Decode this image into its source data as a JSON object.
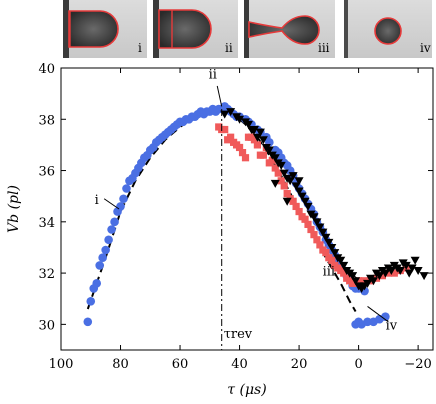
{
  "photos": [
    {
      "label": "i"
    },
    {
      "label": "ii"
    },
    {
      "label": "iii"
    },
    {
      "label": "iv"
    }
  ],
  "chart_data": {
    "type": "scatter",
    "xlabel": "τ (μs)",
    "ylabel": "Vb (pl)",
    "xlim": [
      100,
      -25
    ],
    "ylim": [
      29,
      40
    ],
    "x_ticks": [
      100,
      80,
      60,
      40,
      20,
      0,
      -20
    ],
    "x_tick_labels": [
      "100",
      "80",
      "60",
      "40",
      "20",
      "0",
      "−20"
    ],
    "y_ticks": [
      30,
      32,
      34,
      36,
      38,
      40
    ],
    "y_tick_labels": [
      "30",
      "32",
      "34",
      "36",
      "38",
      "40"
    ],
    "x_reversed": true,
    "grid": false,
    "vline": {
      "x": 46,
      "label": "τrev"
    },
    "fit_curve": {
      "style": "dashed",
      "points": [
        [
          91,
          30.6
        ],
        [
          85,
          32.6
        ],
        [
          80,
          34.4
        ],
        [
          75,
          35.6
        ],
        [
          70,
          36.5
        ],
        [
          65,
          37.2
        ],
        [
          60,
          37.7
        ],
        [
          55,
          38.1
        ],
        [
          50,
          38.3
        ],
        [
          46,
          38.35
        ],
        [
          42,
          38.2
        ],
        [
          38,
          37.8
        ],
        [
          34,
          37.3
        ],
        [
          30,
          36.6
        ],
        [
          26,
          35.8
        ],
        [
          22,
          34.9
        ],
        [
          18,
          34.0
        ],
        [
          14,
          33.2
        ],
        [
          10,
          32.4
        ],
        [
          6,
          31.6
        ],
        [
          3,
          30.9
        ],
        [
          1,
          30.5
        ]
      ]
    },
    "annotations": [
      {
        "text": "i",
        "x": 82,
        "y": 34.2
      },
      {
        "text": "ii",
        "x": 46,
        "y": 38.4
      },
      {
        "text": "iii",
        "x": 3,
        "y": 31.9
      },
      {
        "text": "iv",
        "x": 10,
        "y": 30.2
      }
    ],
    "colors": {
      "blue": "#4a6fe3",
      "red": "#f05a5a",
      "black": "#000000"
    },
    "series": [
      {
        "marker": "circle",
        "color": "#4a6fe3",
        "points": [
          [
            91,
            30.1
          ],
          [
            90,
            30.9
          ],
          [
            89,
            31.4
          ],
          [
            88,
            31.6
          ],
          [
            87,
            32.3
          ],
          [
            86,
            32.6
          ],
          [
            85,
            32.9
          ],
          [
            84,
            33.3
          ],
          [
            83,
            33.7
          ],
          [
            82,
            34.0
          ],
          [
            81,
            34.4
          ],
          [
            80,
            34.6
          ],
          [
            79,
            34.9
          ],
          [
            78,
            35.3
          ],
          [
            77,
            35.6
          ],
          [
            76,
            35.7
          ],
          [
            75,
            35.9
          ],
          [
            74,
            36.1
          ],
          [
            73,
            36.3
          ],
          [
            72,
            36.5
          ],
          [
            71,
            36.6
          ],
          [
            70,
            36.8
          ],
          [
            69,
            36.9
          ],
          [
            68,
            37.1
          ],
          [
            67,
            37.2
          ],
          [
            66,
            37.3
          ],
          [
            65,
            37.4
          ],
          [
            64,
            37.5
          ],
          [
            63,
            37.6
          ],
          [
            62,
            37.7
          ],
          [
            61,
            37.8
          ],
          [
            60,
            37.9
          ],
          [
            59,
            37.9
          ],
          [
            58,
            38.0
          ],
          [
            57,
            38.0
          ],
          [
            56,
            38.1
          ],
          [
            55,
            38.1
          ],
          [
            54,
            38.2
          ],
          [
            53,
            38.3
          ],
          [
            52,
            38.2
          ],
          [
            51,
            38.3
          ],
          [
            50,
            38.3
          ],
          [
            49,
            38.4
          ],
          [
            48,
            38.3
          ],
          [
            47,
            38.4
          ],
          [
            46,
            38.4
          ],
          [
            45,
            38.5
          ],
          [
            44,
            38.4
          ],
          [
            43,
            38.3
          ],
          [
            42,
            38.2
          ],
          [
            41,
            38.1
          ],
          [
            40,
            38.1
          ],
          [
            38,
            38.0
          ],
          [
            37,
            37.9
          ],
          [
            36,
            37.8
          ],
          [
            34,
            37.6
          ],
          [
            33,
            37.5
          ],
          [
            31,
            37.3
          ],
          [
            30,
            37.1
          ],
          [
            28,
            36.8
          ],
          [
            27,
            36.7
          ],
          [
            26,
            36.5
          ],
          [
            25,
            36.3
          ],
          [
            24,
            36.2
          ],
          [
            23,
            36.0
          ],
          [
            22,
            35.8
          ],
          [
            21,
            35.5
          ],
          [
            20,
            35.3
          ],
          [
            19,
            35.1
          ],
          [
            18,
            34.9
          ],
          [
            17,
            34.7
          ],
          [
            16,
            34.5
          ],
          [
            15,
            34.3
          ],
          [
            14,
            34.0
          ],
          [
            13,
            33.8
          ],
          [
            12,
            33.6
          ],
          [
            11,
            33.3
          ],
          [
            10,
            33.1
          ],
          [
            9,
            32.9
          ],
          [
            8,
            32.7
          ],
          [
            7,
            32.5
          ],
          [
            6,
            32.3
          ],
          [
            5,
            32.1
          ],
          [
            4,
            31.9
          ],
          [
            3,
            31.8
          ],
          [
            2,
            31.6
          ],
          [
            1,
            31.4
          ],
          [
            2,
            31.5
          ],
          [
            0,
            30.1
          ],
          [
            -1,
            30.0
          ],
          [
            1,
            30.0
          ],
          [
            -3,
            30.1
          ],
          [
            -5,
            30.1
          ],
          [
            -7,
            30.2
          ],
          [
            -9,
            30.3
          ],
          [
            -2,
            31.3
          ],
          [
            0,
            31.4
          ]
        ]
      },
      {
        "marker": "square",
        "color": "#f05a5a",
        "points": [
          [
            47,
            37.7
          ],
          [
            46,
            37.6
          ],
          [
            45,
            37.6
          ],
          [
            44,
            37.2
          ],
          [
            43,
            37.3
          ],
          [
            42,
            37.1
          ],
          [
            41,
            37.0
          ],
          [
            40,
            36.9
          ],
          [
            39,
            36.7
          ],
          [
            38,
            36.5
          ],
          [
            37,
            37.3
          ],
          [
            36,
            37.3
          ],
          [
            35,
            37.2
          ],
          [
            34,
            37.0
          ],
          [
            33,
            36.6
          ],
          [
            32,
            36.6
          ],
          [
            31,
            36.9
          ],
          [
            30,
            36.3
          ],
          [
            29,
            36.4
          ],
          [
            28,
            36.1
          ],
          [
            27,
            35.9
          ],
          [
            26,
            35.6
          ],
          [
            25,
            35.4
          ],
          [
            24,
            35.1
          ],
          [
            23,
            34.9
          ],
          [
            22,
            34.8
          ],
          [
            21,
            34.6
          ],
          [
            20,
            34.4
          ],
          [
            19,
            34.2
          ],
          [
            18,
            34.1
          ],
          [
            17,
            33.9
          ],
          [
            16,
            33.7
          ],
          [
            15,
            33.5
          ],
          [
            14,
            33.3
          ],
          [
            13,
            33.1
          ],
          [
            12,
            32.9
          ],
          [
            11,
            32.8
          ],
          [
            10,
            32.6
          ],
          [
            9,
            32.5
          ],
          [
            8,
            32.3
          ],
          [
            7,
            32.2
          ],
          [
            6,
            32.1
          ],
          [
            5,
            32.0
          ],
          [
            4,
            31.8
          ],
          [
            3,
            31.7
          ],
          [
            2,
            31.6
          ],
          [
            1,
            31.6
          ],
          [
            0,
            31.7
          ],
          [
            -2,
            31.7
          ],
          [
            -4,
            31.7
          ],
          [
            -6,
            31.8
          ],
          [
            -8,
            31.9
          ],
          [
            -10,
            32.0
          ],
          [
            -12,
            32.0
          ],
          [
            -14,
            32.1
          ],
          [
            -16,
            32.2
          ]
        ]
      },
      {
        "marker": "triangle-down",
        "color": "#000000",
        "points": [
          [
            45,
            38.2
          ],
          [
            43,
            38.3
          ],
          [
            41,
            38.1
          ],
          [
            40,
            38.0
          ],
          [
            38,
            37.9
          ],
          [
            37,
            37.8
          ],
          [
            36,
            37.6
          ],
          [
            35,
            37.6
          ],
          [
            34,
            37.3
          ],
          [
            33,
            37.5
          ],
          [
            32,
            37.2
          ],
          [
            31,
            36.9
          ],
          [
            30,
            36.8
          ],
          [
            29,
            36.6
          ],
          [
            28,
            36.5
          ],
          [
            27,
            36.3
          ],
          [
            26,
            36.2
          ],
          [
            25,
            35.9
          ],
          [
            24,
            35.7
          ],
          [
            23,
            35.6
          ],
          [
            22,
            35.8
          ],
          [
            21,
            35.4
          ],
          [
            20,
            35.2
          ],
          [
            19,
            35.0
          ],
          [
            18,
            34.8
          ],
          [
            17,
            34.6
          ],
          [
            16,
            34.3
          ],
          [
            15,
            34.2
          ],
          [
            14,
            34.0
          ],
          [
            13,
            33.8
          ],
          [
            12,
            33.6
          ],
          [
            11,
            33.4
          ],
          [
            10,
            33.2
          ],
          [
            9,
            33.0
          ],
          [
            8,
            32.8
          ],
          [
            7,
            32.6
          ],
          [
            6,
            32.5
          ],
          [
            5,
            32.3
          ],
          [
            4,
            32.1
          ],
          [
            3,
            32.0
          ],
          [
            2,
            31.9
          ],
          [
            1,
            31.7
          ],
          [
            0,
            31.5
          ],
          [
            -1,
            31.4
          ],
          [
            -2,
            31.5
          ],
          [
            -3,
            31.6
          ],
          [
            -4,
            31.8
          ],
          [
            -5,
            31.7
          ],
          [
            -6,
            32.0
          ],
          [
            -7,
            31.9
          ],
          [
            -8,
            32.1
          ],
          [
            -9,
            32.0
          ],
          [
            -10,
            32.2
          ],
          [
            -11,
            32.1
          ],
          [
            -12,
            32.3
          ],
          [
            -13,
            32.2
          ],
          [
            -14,
            32.1
          ],
          [
            -15,
            32.4
          ],
          [
            -16,
            32.3
          ],
          [
            -17,
            32.0
          ],
          [
            -18,
            32.2
          ],
          [
            -19,
            32.5
          ],
          [
            -20,
            32.1
          ],
          [
            -22,
            31.9
          ],
          [
            28,
            35.5
          ],
          [
            24,
            34.8
          ],
          [
            20,
            35.6
          ]
        ]
      }
    ]
  }
}
